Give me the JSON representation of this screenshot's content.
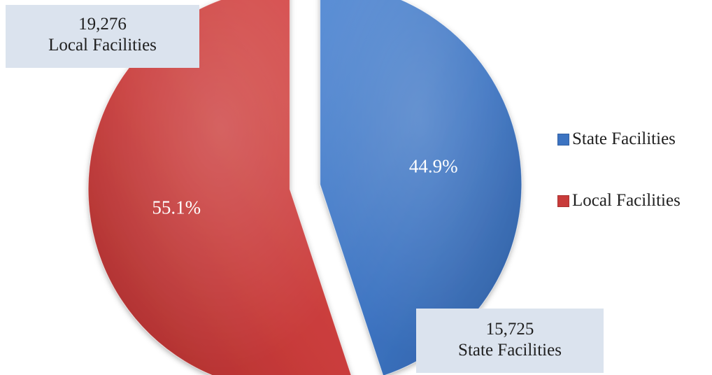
{
  "chart_data": {
    "type": "pie",
    "title": "",
    "slices": [
      {
        "name": "Local Facilities",
        "value": 19276,
        "percent_label": "55.1%",
        "color": "#c83b3a"
      },
      {
        "name": "State Facilities",
        "value": 15725,
        "percent_label": "44.9%",
        "color": "#3c73c1"
      }
    ],
    "callouts": [
      {
        "value_label": "19,276",
        "name": "Local Facilities"
      },
      {
        "value_label": "15,725",
        "name": "State Facilities"
      }
    ],
    "legend": {
      "placement": "right",
      "entries": [
        {
          "label": "State Facilities",
          "color": "#3c73c1"
        },
        {
          "label": "Local Facilities",
          "color": "#c83b3a"
        }
      ]
    }
  }
}
